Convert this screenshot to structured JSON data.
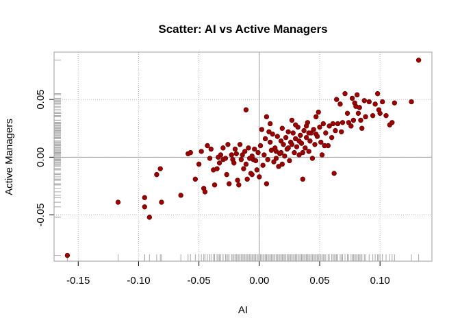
{
  "chart_data": {
    "type": "scatter",
    "title": "Scatter: AI vs Active Managers",
    "xlabel": "AI",
    "ylabel": "Active Managers",
    "xlim": [
      -0.17,
      0.143
    ],
    "ylim": [
      -0.09,
      0.091
    ],
    "x_ticks": [
      -0.15,
      -0.1,
      -0.05,
      0.0,
      0.05,
      0.1
    ],
    "x_tick_labels": [
      "-0.15",
      "-0.10",
      "-0.05",
      "0.00",
      "0.05",
      "0.10"
    ],
    "y_ticks": [
      -0.05,
      0.0,
      0.05
    ],
    "y_tick_labels": [
      "-0.05",
      "0.00",
      "0.05"
    ],
    "grid": true,
    "zero_lines": true,
    "rug": true,
    "colors": {
      "point_fill": "#990000",
      "point_stroke": "#6e0000",
      "grid": "#b3b3b3",
      "zero_line": "#9e9e9e",
      "rug": "#a8a8a8",
      "frame": "#9e9e9e"
    },
    "points": [
      [
        -0.159,
        -0.085
      ],
      [
        -0.117,
        -0.039
      ],
      [
        -0.095,
        -0.043
      ],
      [
        -0.095,
        -0.035
      ],
      [
        -0.091,
        -0.052
      ],
      [
        -0.081,
        -0.039
      ],
      [
        -0.082,
        -0.01
      ],
      [
        -0.085,
        -0.015
      ],
      [
        -0.065,
        -0.033
      ],
      [
        -0.059,
        0.003
      ],
      [
        -0.057,
        0.004
      ],
      [
        -0.053,
        -0.019
      ],
      [
        -0.05,
        -0.006
      ],
      [
        -0.048,
        0.005
      ],
      [
        -0.046,
        -0.027
      ],
      [
        -0.045,
        -0.03
      ],
      [
        -0.043,
        0.01
      ],
      [
        -0.041,
        -0.001
      ],
      [
        -0.04,
        0.007
      ],
      [
        -0.038,
        -0.011
      ],
      [
        -0.037,
        -0.024
      ],
      [
        -0.035,
        -0.01
      ],
      [
        -0.033,
        -0.005
      ],
      [
        -0.032,
        0.002
      ],
      [
        -0.03,
        0.008
      ],
      [
        -0.03,
        -0.002
      ],
      [
        -0.028,
        -0.001
      ],
      [
        -0.026,
        0.011
      ],
      [
        -0.025,
        -0.023
      ],
      [
        -0.023,
        0.002
      ],
      [
        -0.022,
        -0.002
      ],
      [
        -0.021,
        -0.005
      ],
      [
        -0.02,
        0.007
      ],
      [
        -0.018,
        -0.02
      ],
      [
        -0.017,
        -0.024
      ],
      [
        -0.016,
        0.011
      ],
      [
        -0.015,
        -0.002
      ],
      [
        -0.014,
        0.002
      ],
      [
        -0.013,
        -0.01
      ],
      [
        -0.012,
        0.005
      ],
      [
        -0.011,
        -0.006
      ],
      [
        -0.01,
        -0.019
      ],
      [
        -0.009,
        0.008
      ],
      [
        -0.008,
        -0.001
      ],
      [
        -0.007,
        -0.014
      ],
      [
        -0.006,
        0.001
      ],
      [
        -0.005,
        -0.002
      ],
      [
        -0.004,
        0.007
      ],
      [
        -0.003,
        -0.003
      ],
      [
        -0.011,
        0.041
      ],
      [
        -0.002,
        -0.011
      ],
      [
        -0.001,
        0.004
      ],
      [
        0.0,
        -0.017
      ],
      [
        0.001,
        0.01
      ],
      [
        0.002,
        0.024
      ],
      [
        0.003,
        -0.007
      ],
      [
        0.004,
        0.002
      ],
      [
        0.005,
        0.016
      ],
      [
        0.006,
        -0.023
      ],
      [
        0.007,
        -0.002
      ],
      [
        0.008,
        0.022
      ],
      [
        0.009,
        0.013
      ],
      [
        0.01,
        0.006
      ],
      [
        0.011,
        0.02
      ],
      [
        0.012,
        -0.004
      ],
      [
        0.013,
        0.008
      ],
      [
        0.014,
        0.005
      ],
      [
        0.015,
        0.018
      ],
      [
        0.016,
        -0.008
      ],
      [
        0.017,
        0.003
      ],
      [
        0.018,
        0.014
      ],
      [
        0.019,
        0.025
      ],
      [
        0.02,
        0.011
      ],
      [
        0.021,
        0.001
      ],
      [
        0.022,
        0.017
      ],
      [
        0.023,
        0.007
      ],
      [
        0.024,
        0.022
      ],
      [
        0.025,
        -0.003
      ],
      [
        0.026,
        0.013
      ],
      [
        0.027,
        0.032
      ],
      [
        0.028,
        0.021
      ],
      [
        0.029,
        0.004
      ],
      [
        0.03,
        0.016
      ],
      [
        0.031,
        0.009
      ],
      [
        0.032,
        0.026
      ],
      [
        0.033,
        0.002
      ],
      [
        0.034,
        0.019
      ],
      [
        0.035,
        0.012
      ],
      [
        0.036,
        -0.019
      ],
      [
        0.037,
        0.023
      ],
      [
        0.038,
        0.008
      ],
      [
        0.039,
        0.017
      ],
      [
        0.04,
        0.03
      ],
      [
        0.041,
        0.005
      ],
      [
        0.042,
        0.014
      ],
      [
        0.043,
        0.021
      ],
      [
        0.044,
        -0.001
      ],
      [
        0.045,
        0.024
      ],
      [
        0.046,
        0.011
      ],
      [
        0.047,
        0.035
      ],
      [
        0.048,
        0.018
      ],
      [
        0.049,
        0.039
      ],
      [
        0.05,
        0.026
      ],
      [
        0.051,
        0.013
      ],
      [
        0.052,
        0.002
      ],
      [
        0.053,
        0.029
      ],
      [
        0.055,
        0.021
      ],
      [
        0.057,
        0.01
      ],
      [
        0.058,
        0.027
      ],
      [
        0.06,
        0.017
      ],
      [
        0.061,
        0.029
      ],
      [
        0.062,
        -0.014
      ],
      [
        0.063,
        0.023
      ],
      [
        0.064,
        0.05
      ],
      [
        0.065,
        0.029
      ],
      [
        0.067,
        0.046
      ],
      [
        0.068,
        0.022
      ],
      [
        0.069,
        0.03
      ],
      [
        0.071,
        0.055
      ],
      [
        0.073,
        0.038
      ],
      [
        0.074,
        0.03
      ],
      [
        0.076,
        0.027
      ],
      [
        0.077,
        0.051
      ],
      [
        0.078,
        0.032
      ],
      [
        0.079,
        0.047
      ],
      [
        0.08,
        0.044
      ],
      [
        0.081,
        0.054
      ],
      [
        0.082,
        0.038
      ],
      [
        0.083,
        0.043
      ],
      [
        0.084,
        0.032
      ],
      [
        0.085,
        0.025
      ],
      [
        0.087,
        0.049
      ],
      [
        0.088,
        0.035
      ],
      [
        0.091,
        0.048
      ],
      [
        0.094,
        0.036
      ],
      [
        0.096,
        0.046
      ],
      [
        0.098,
        0.055
      ],
      [
        0.099,
        0.041
      ],
      [
        0.1,
        0.038
      ],
      [
        0.102,
        0.048
      ],
      [
        0.105,
        0.036
      ],
      [
        0.108,
        0.028
      ],
      [
        0.11,
        0.03
      ],
      [
        0.112,
        0.047
      ],
      [
        0.126,
        0.048
      ],
      [
        0.132,
        0.084
      ],
      [
        0.03,
        0.028
      ],
      [
        0.036,
        0.004
      ],
      [
        0.014,
        -0.001
      ],
      [
        -0.027,
        -0.015
      ],
      [
        0.006,
        0.035
      ],
      [
        0.054,
        0.01
      ],
      [
        -0.034,
        0.0
      ],
      [
        0.024,
        0.008
      ],
      [
        0.041,
        0.021
      ],
      [
        0.019,
        -0.006
      ],
      [
        -0.006,
        -0.015
      ],
      [
        0.009,
        0.029
      ],
      [
        0.039,
        0.027
      ],
      [
        0.033,
        0.014
      ],
      [
        0.018,
        0.004
      ],
      [
        -0.019,
        0.003
      ],
      [
        0.047,
        0.02
      ],
      [
        0.027,
        0.011
      ]
    ]
  }
}
